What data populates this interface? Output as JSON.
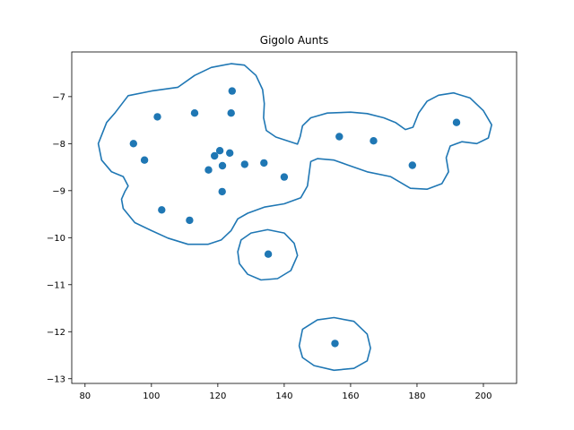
{
  "chart_data": {
    "type": "scatter",
    "title": "Gigolo Aunts",
    "xlabel": "",
    "ylabel": "",
    "xlim": [
      76,
      210
    ],
    "ylim": [
      -13.1,
      -6.05
    ],
    "xticks": [
      80,
      100,
      120,
      140,
      160,
      180,
      200
    ],
    "yticks": [
      -13,
      -12,
      -11,
      -10,
      -9,
      -8,
      -7
    ],
    "grid": false,
    "color": "#1f77b4",
    "points": [
      {
        "x": 124.3,
        "y": -6.88
      },
      {
        "x": 101.8,
        "y": -7.43
      },
      {
        "x": 113.0,
        "y": -7.35
      },
      {
        "x": 124.0,
        "y": -7.35
      },
      {
        "x": 94.6,
        "y": -8.0
      },
      {
        "x": 97.9,
        "y": -8.35
      },
      {
        "x": 120.6,
        "y": -8.15
      },
      {
        "x": 123.6,
        "y": -8.2
      },
      {
        "x": 119.0,
        "y": -8.26
      },
      {
        "x": 121.4,
        "y": -8.47
      },
      {
        "x": 117.2,
        "y": -8.56
      },
      {
        "x": 128.1,
        "y": -8.44
      },
      {
        "x": 133.9,
        "y": -8.41
      },
      {
        "x": 140.0,
        "y": -8.71
      },
      {
        "x": 121.3,
        "y": -9.02
      },
      {
        "x": 103.1,
        "y": -9.41
      },
      {
        "x": 111.5,
        "y": -9.63
      },
      {
        "x": 156.6,
        "y": -7.85
      },
      {
        "x": 166.9,
        "y": -7.94
      },
      {
        "x": 178.6,
        "y": -8.46
      },
      {
        "x": 191.9,
        "y": -7.55
      },
      {
        "x": 135.2,
        "y": -10.35
      },
      {
        "x": 155.3,
        "y": -12.25
      }
    ],
    "contours": [
      [
        [
          84.0,
          -8.0
        ],
        [
          86.5,
          -7.55
        ],
        [
          89.0,
          -7.35
        ],
        [
          93.0,
          -6.98
        ],
        [
          100.0,
          -6.88
        ],
        [
          108.0,
          -6.8
        ],
        [
          113.0,
          -6.55
        ],
        [
          118.0,
          -6.38
        ],
        [
          124.0,
          -6.3
        ],
        [
          128.0,
          -6.33
        ],
        [
          131.5,
          -6.55
        ],
        [
          133.5,
          -6.85
        ],
        [
          134.0,
          -7.15
        ],
        [
          133.8,
          -7.45
        ],
        [
          134.6,
          -7.72
        ],
        [
          137.5,
          -7.86
        ],
        [
          141.0,
          -7.94
        ],
        [
          144.0,
          -8.01
        ],
        [
          144.8,
          -7.85
        ],
        [
          145.5,
          -7.62
        ],
        [
          148.0,
          -7.45
        ],
        [
          153.0,
          -7.35
        ],
        [
          160.0,
          -7.33
        ],
        [
          165.0,
          -7.36
        ],
        [
          170.0,
          -7.45
        ],
        [
          173.5,
          -7.55
        ],
        [
          176.5,
          -7.7
        ],
        [
          178.8,
          -7.65
        ],
        [
          180.5,
          -7.35
        ],
        [
          183.0,
          -7.1
        ],
        [
          186.5,
          -6.97
        ],
        [
          191.0,
          -6.92
        ],
        [
          196.0,
          -7.03
        ],
        [
          200.0,
          -7.3
        ],
        [
          202.5,
          -7.6
        ],
        [
          201.5,
          -7.88
        ],
        [
          198.0,
          -8.0
        ],
        [
          193.5,
          -7.96
        ],
        [
          190.0,
          -8.05
        ],
        [
          188.8,
          -8.3
        ],
        [
          189.5,
          -8.6
        ],
        [
          187.5,
          -8.85
        ],
        [
          183.0,
          -8.97
        ],
        [
          178.0,
          -8.95
        ],
        [
          172.0,
          -8.7
        ],
        [
          165.0,
          -8.6
        ],
        [
          159.0,
          -8.45
        ],
        [
          155.0,
          -8.35
        ],
        [
          150.0,
          -8.32
        ],
        [
          148.0,
          -8.38
        ],
        [
          147.0,
          -8.9
        ],
        [
          145.0,
          -9.15
        ],
        [
          140.0,
          -9.28
        ],
        [
          134.0,
          -9.35
        ],
        [
          129.0,
          -9.48
        ],
        [
          126.0,
          -9.6
        ],
        [
          124.0,
          -9.85
        ],
        [
          121.0,
          -10.05
        ],
        [
          117.0,
          -10.14
        ],
        [
          111.0,
          -10.14
        ],
        [
          105.0,
          -10.01
        ],
        [
          100.0,
          -9.85
        ],
        [
          95.0,
          -9.68
        ],
        [
          91.5,
          -9.38
        ],
        [
          91.0,
          -9.18
        ],
        [
          92.0,
          -9.02
        ],
        [
          93.0,
          -8.9
        ],
        [
          91.5,
          -8.7
        ],
        [
          88.0,
          -8.6
        ],
        [
          85.0,
          -8.35
        ],
        [
          84.0,
          -8.0
        ]
      ],
      [
        [
          126.0,
          -10.3
        ],
        [
          127.0,
          -10.05
        ],
        [
          130.0,
          -9.9
        ],
        [
          135.0,
          -9.83
        ],
        [
          140.0,
          -9.9
        ],
        [
          143.0,
          -10.12
        ],
        [
          144.0,
          -10.38
        ],
        [
          142.0,
          -10.7
        ],
        [
          138.0,
          -10.87
        ],
        [
          133.0,
          -10.9
        ],
        [
          129.0,
          -10.78
        ],
        [
          126.5,
          -10.55
        ],
        [
          126.0,
          -10.3
        ]
      ],
      [
        [
          144.5,
          -12.3
        ],
        [
          145.5,
          -11.95
        ],
        [
          150.0,
          -11.75
        ],
        [
          155.0,
          -11.7
        ],
        [
          161.0,
          -11.78
        ],
        [
          165.0,
          -12.05
        ],
        [
          166.0,
          -12.35
        ],
        [
          165.0,
          -12.62
        ],
        [
          161.0,
          -12.78
        ],
        [
          155.0,
          -12.82
        ],
        [
          149.0,
          -12.72
        ],
        [
          145.5,
          -12.55
        ],
        [
          144.5,
          -12.3
        ]
      ]
    ]
  }
}
